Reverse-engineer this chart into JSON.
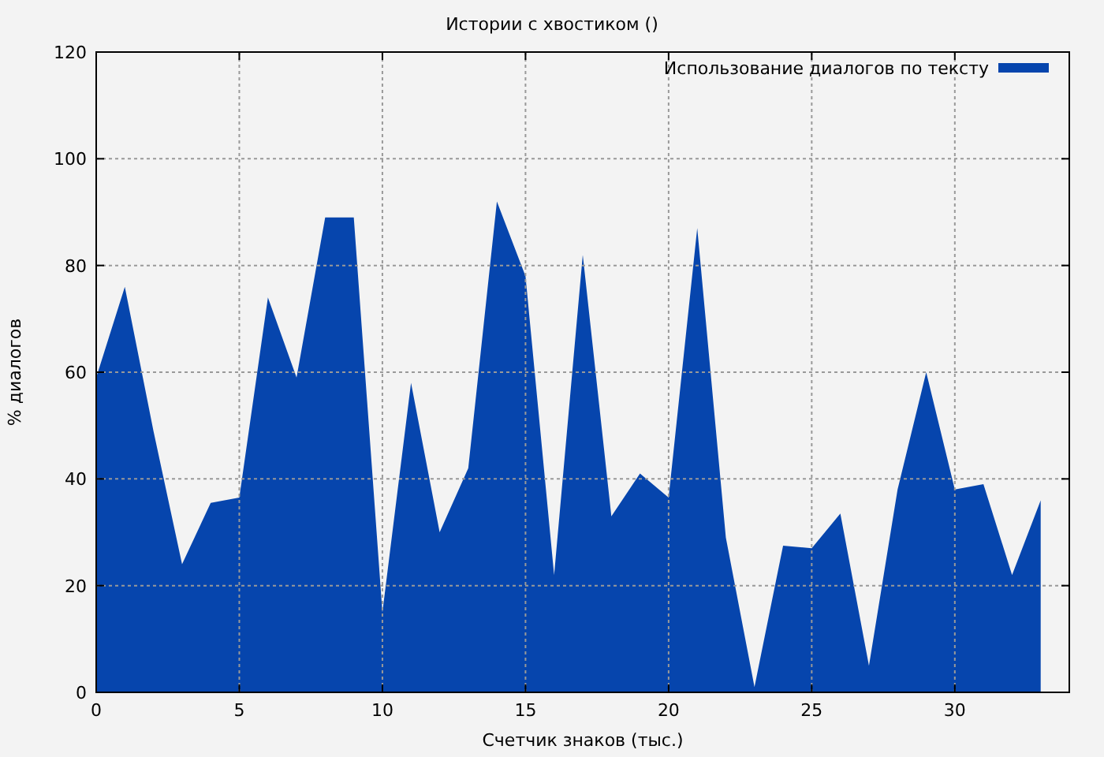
{
  "chart_data": {
    "type": "area",
    "title": "Истории с хвостиком ()",
    "xlabel": "Счетчик знаков (тыс.)",
    "ylabel": "% диалогов",
    "x": [
      0,
      1,
      2,
      3,
      4,
      5,
      6,
      7,
      8,
      9,
      10,
      11,
      12,
      13,
      14,
      15,
      16,
      17,
      18,
      19,
      20,
      21,
      22,
      23,
      24,
      25,
      26,
      27,
      28,
      29,
      30,
      31,
      32,
      33
    ],
    "series": [
      {
        "name": "Использование диалогов по тексту",
        "color": "#0645ad",
        "values": [
          59,
          76,
          49,
          24,
          35.5,
          36.5,
          74,
          59,
          89,
          89,
          15,
          58,
          30,
          42,
          92,
          78,
          22,
          82,
          33,
          41,
          36.5,
          87,
          29,
          1,
          27.5,
          27,
          33.5,
          5,
          38,
          60,
          38,
          39,
          22,
          36
        ]
      }
    ],
    "xlim": [
      0,
      34
    ],
    "ylim": [
      0,
      120
    ],
    "xticks": [
      0,
      5,
      10,
      15,
      20,
      25,
      30
    ],
    "yticks": [
      0,
      20,
      40,
      60,
      80,
      100,
      120
    ],
    "grid": true,
    "legend": "top right"
  }
}
